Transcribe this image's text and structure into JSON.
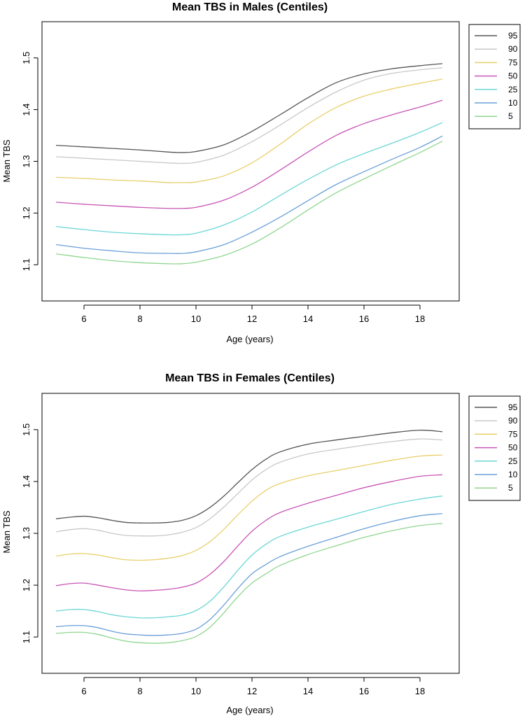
{
  "chart_data": [
    {
      "type": "line",
      "title": "Mean TBS in Males (Centiles)",
      "xlabel": "Age (years)",
      "ylabel": "Mean TBS",
      "xlim": [
        4.5,
        19.4
      ],
      "ylim": [
        1.03,
        1.57
      ],
      "xticks": [
        6,
        8,
        10,
        12,
        14,
        16,
        18
      ],
      "yticks": [
        1.1,
        1.2,
        1.3,
        1.4,
        1.5
      ],
      "xtick_labels": [
        "6",
        "8",
        "10",
        "12",
        "14",
        "16",
        "18"
      ],
      "ytick_labels": [
        "1.1",
        "1.2",
        "1.3",
        "1.4",
        "1.5"
      ],
      "grid": false,
      "legend_position": "outside-right-top",
      "x": [
        5,
        6,
        7,
        8,
        9,
        9.5,
        10,
        11,
        12,
        13,
        14,
        15,
        16,
        17,
        18,
        18.8
      ],
      "series": [
        {
          "name": "95",
          "color": "#555555",
          "values": [
            1.331,
            1.328,
            1.325,
            1.322,
            1.318,
            1.317,
            1.319,
            1.332,
            1.358,
            1.39,
            1.423,
            1.452,
            1.469,
            1.479,
            1.485,
            1.489
          ]
        },
        {
          "name": "90",
          "color": "#c8c8c8",
          "values": [
            1.309,
            1.306,
            1.303,
            1.3,
            1.297,
            1.296,
            1.298,
            1.312,
            1.338,
            1.37,
            1.404,
            1.434,
            1.457,
            1.47,
            1.477,
            1.481
          ]
        },
        {
          "name": "75",
          "color": "#e8cf6a",
          "values": [
            1.269,
            1.267,
            1.264,
            1.262,
            1.259,
            1.259,
            1.26,
            1.272,
            1.297,
            1.333,
            1.372,
            1.404,
            1.426,
            1.44,
            1.451,
            1.459
          ]
        },
        {
          "name": "50",
          "color": "#c855b5",
          "values": [
            1.221,
            1.217,
            1.214,
            1.211,
            1.209,
            1.209,
            1.211,
            1.225,
            1.25,
            1.283,
            1.318,
            1.35,
            1.373,
            1.39,
            1.405,
            1.418
          ]
        },
        {
          "name": "25",
          "color": "#6cd6d6",
          "values": [
            1.174,
            1.168,
            1.163,
            1.16,
            1.158,
            1.158,
            1.161,
            1.177,
            1.202,
            1.234,
            1.265,
            1.293,
            1.315,
            1.335,
            1.356,
            1.375
          ]
        },
        {
          "name": "10",
          "color": "#6a9fd8",
          "values": [
            1.139,
            1.132,
            1.127,
            1.123,
            1.122,
            1.122,
            1.125,
            1.139,
            1.163,
            1.192,
            1.224,
            1.255,
            1.28,
            1.304,
            1.327,
            1.349
          ]
        },
        {
          "name": "5",
          "color": "#8fd68f",
          "values": [
            1.121,
            1.114,
            1.108,
            1.104,
            1.102,
            1.102,
            1.105,
            1.118,
            1.14,
            1.171,
            1.206,
            1.239,
            1.266,
            1.292,
            1.317,
            1.339
          ]
        }
      ]
    },
    {
      "type": "line",
      "title": "Mean TBS in Females (Centiles)",
      "xlabel": "Age (years)",
      "ylabel": "Mean TBS",
      "xlim": [
        4.5,
        19.4
      ],
      "ylim": [
        1.03,
        1.57
      ],
      "xticks": [
        6,
        8,
        10,
        12,
        14,
        16,
        18
      ],
      "yticks": [
        1.1,
        1.2,
        1.3,
        1.4,
        1.5
      ],
      "xtick_labels": [
        "6",
        "8",
        "10",
        "12",
        "14",
        "16",
        "18"
      ],
      "ytick_labels": [
        "1.1",
        "1.2",
        "1.3",
        "1.4",
        "1.5"
      ],
      "grid": false,
      "legend_position": "outside-right-top",
      "x": [
        5,
        5.5,
        6,
        6.5,
        7,
        7.5,
        8,
        8.5,
        9,
        9.5,
        10,
        10.5,
        11,
        11.5,
        12,
        12.5,
        13,
        14,
        15,
        16,
        17,
        18,
        18.8
      ],
      "series": [
        {
          "name": "95",
          "color": "#555555",
          "values": [
            1.328,
            1.331,
            1.333,
            1.33,
            1.325,
            1.321,
            1.32,
            1.32,
            1.321,
            1.325,
            1.334,
            1.35,
            1.372,
            1.398,
            1.423,
            1.443,
            1.457,
            1.472,
            1.48,
            1.487,
            1.494,
            1.499,
            1.496
          ]
        },
        {
          "name": "90",
          "color": "#c8c8c8",
          "values": [
            1.303,
            1.307,
            1.309,
            1.306,
            1.3,
            1.296,
            1.295,
            1.295,
            1.297,
            1.302,
            1.311,
            1.328,
            1.351,
            1.377,
            1.403,
            1.423,
            1.437,
            1.453,
            1.462,
            1.47,
            1.477,
            1.482,
            1.48
          ]
        },
        {
          "name": "75",
          "color": "#e8cf6a",
          "values": [
            1.256,
            1.26,
            1.261,
            1.258,
            1.253,
            1.249,
            1.248,
            1.249,
            1.252,
            1.257,
            1.267,
            1.284,
            1.308,
            1.336,
            1.362,
            1.383,
            1.396,
            1.411,
            1.421,
            1.431,
            1.441,
            1.449,
            1.451
          ]
        },
        {
          "name": "50",
          "color": "#c855b5",
          "values": [
            1.199,
            1.203,
            1.204,
            1.2,
            1.195,
            1.191,
            1.189,
            1.19,
            1.192,
            1.196,
            1.204,
            1.221,
            1.246,
            1.276,
            1.304,
            1.325,
            1.34,
            1.358,
            1.373,
            1.388,
            1.4,
            1.41,
            1.413
          ]
        },
        {
          "name": "25",
          "color": "#6cd6d6",
          "values": [
            1.15,
            1.153,
            1.153,
            1.149,
            1.143,
            1.139,
            1.137,
            1.137,
            1.139,
            1.142,
            1.151,
            1.169,
            1.197,
            1.229,
            1.258,
            1.279,
            1.294,
            1.312,
            1.327,
            1.342,
            1.356,
            1.366,
            1.372
          ]
        },
        {
          "name": "10",
          "color": "#6a9fd8",
          "values": [
            1.12,
            1.122,
            1.122,
            1.118,
            1.111,
            1.106,
            1.104,
            1.103,
            1.104,
            1.107,
            1.115,
            1.134,
            1.162,
            1.194,
            1.222,
            1.24,
            1.255,
            1.275,
            1.292,
            1.309,
            1.323,
            1.334,
            1.338
          ]
        },
        {
          "name": "5",
          "color": "#8fd68f",
          "values": [
            1.107,
            1.109,
            1.109,
            1.105,
            1.098,
            1.092,
            1.089,
            1.088,
            1.089,
            1.093,
            1.101,
            1.119,
            1.147,
            1.178,
            1.204,
            1.222,
            1.238,
            1.259,
            1.276,
            1.292,
            1.305,
            1.315,
            1.319
          ]
        }
      ]
    }
  ]
}
